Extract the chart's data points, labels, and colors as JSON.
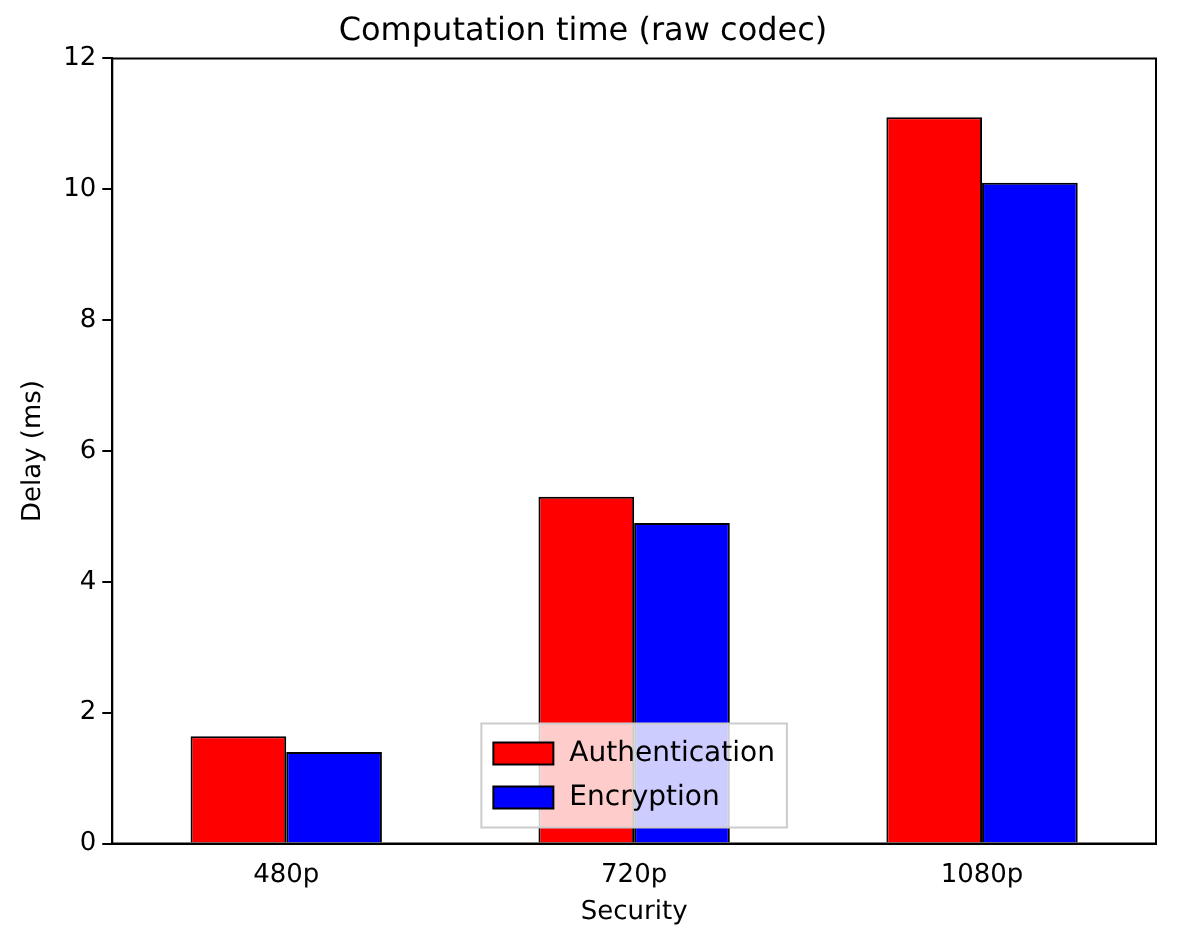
{
  "chart_data": {
    "type": "bar",
    "title": "Computation time (raw codec)",
    "xlabel": "Security",
    "ylabel": "Delay (ms)",
    "categories": [
      "480p",
      "720p",
      "1080p"
    ],
    "series": [
      {
        "name": "Authentication",
        "color": "#ff0000",
        "values": [
          1.64,
          5.3,
          11.1
        ]
      },
      {
        "name": "Encryption",
        "color": "#0000ff",
        "values": [
          1.4,
          4.9,
          10.1
        ]
      }
    ],
    "ylim": [
      0,
      12
    ],
    "yticks": [
      0,
      2,
      4,
      6,
      8,
      10,
      12
    ],
    "grid": false,
    "legend": "bottom"
  }
}
